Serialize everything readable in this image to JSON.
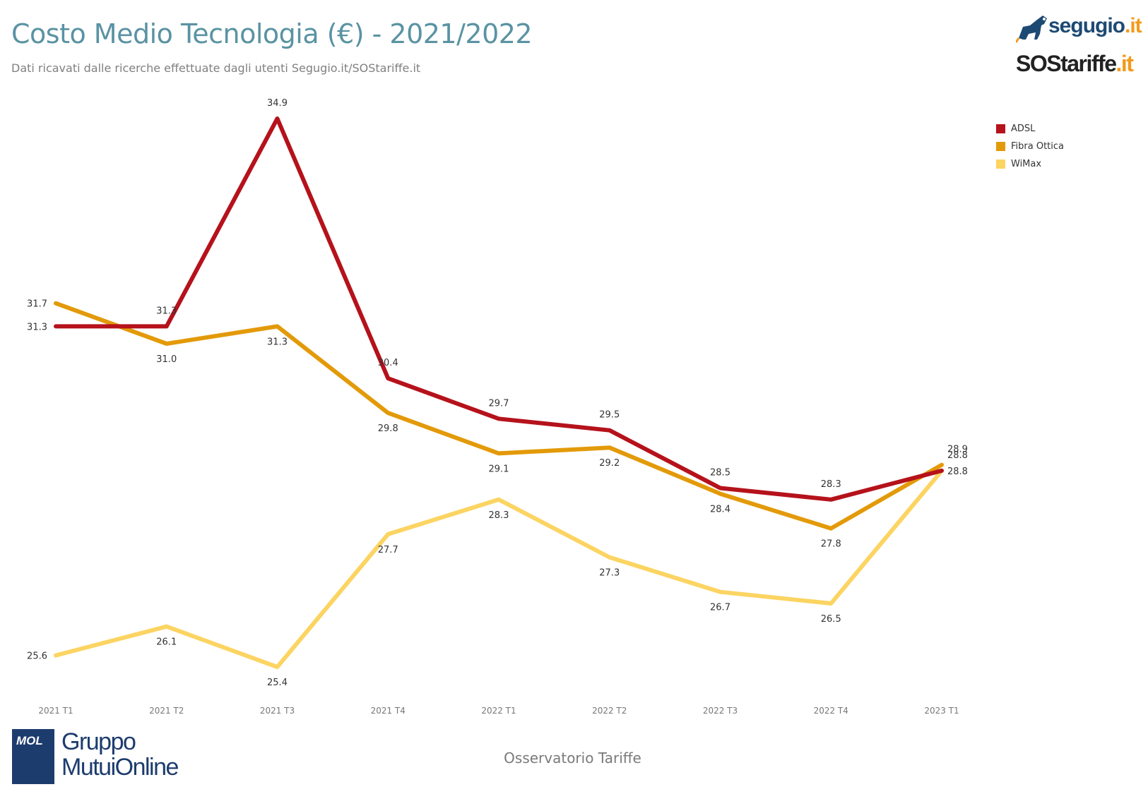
{
  "header": {
    "title": "Costo Medio Tecnologia (€) - 2021/2022",
    "subtitle": "Dati ricavati dalle ricerche effettuate dagli utenti Segugio.it/SOStariffe.it"
  },
  "logos": {
    "segugio_main": "segugio",
    "segugio_ext": ".it",
    "sos_main": "SOStariffe",
    "sos_ext": ".it",
    "mol": "MOL",
    "gruppo_line1": "Gruppo",
    "gruppo_line2": "MutuiOnline"
  },
  "footer": {
    "text": "Osservatorio Tariffe"
  },
  "chart_data": {
    "type": "line",
    "categories": [
      "2021 T1",
      "2021 T2",
      "2021 T3",
      "2021 T4",
      "2022 T1",
      "2022 T2",
      "2022 T3",
      "2022 T4",
      "2023 T1"
    ],
    "series": [
      {
        "name": "ADSL",
        "color": "#b5121b",
        "values": [
          31.3,
          31.3,
          34.9,
          30.4,
          29.7,
          29.5,
          28.5,
          28.3,
          28.8
        ]
      },
      {
        "name": "Fibra Ottica",
        "color": "#e39a09",
        "values": [
          31.7,
          31.0,
          31.3,
          29.8,
          29.1,
          29.2,
          28.4,
          27.8,
          28.9
        ]
      },
      {
        "name": "WiMax",
        "color": "#fcd462",
        "values": [
          25.6,
          26.1,
          25.4,
          27.7,
          28.3,
          27.3,
          26.7,
          26.5,
          28.8
        ]
      }
    ],
    "ylim": [
      25.4,
      34.9
    ],
    "legend": "top-right",
    "grid": false
  }
}
